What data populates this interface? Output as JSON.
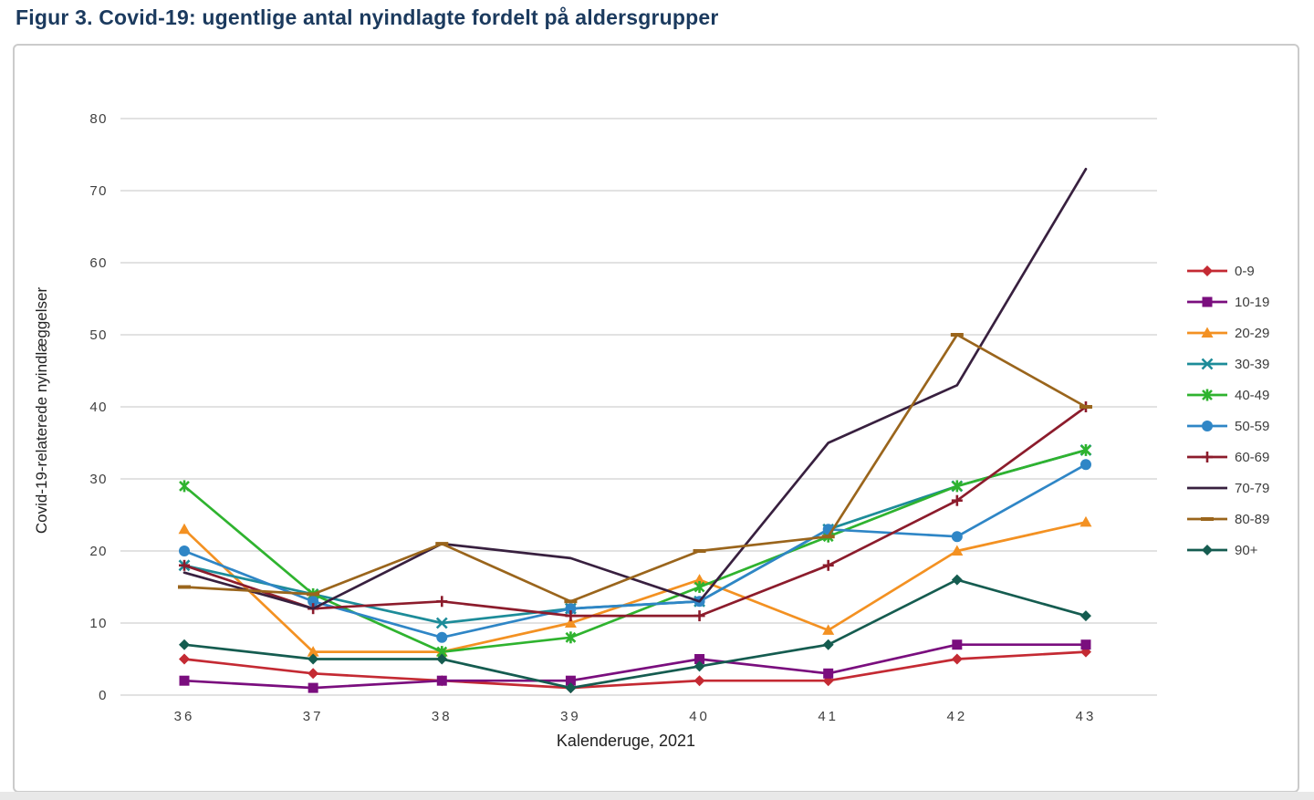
{
  "title": "Figur 3. Covid-19: ugentlige antal nyindlagte fordelt på aldersgrupper",
  "chart_data": {
    "type": "line",
    "title": "Figur 3. Covid-19: ugentlige antal nyindlagte fordelt på aldersgrupper",
    "xlabel": "Kalenderuge, 2021",
    "ylabel": "Covid-19-relaterede nyindlæggelser",
    "x": [
      36,
      37,
      38,
      39,
      40,
      41,
      42,
      43
    ],
    "yticks": [
      0,
      10,
      20,
      30,
      40,
      50,
      60,
      70,
      80
    ],
    "ylim": [
      0,
      80
    ],
    "grid": "horizontal",
    "legend_position": "right",
    "series": [
      {
        "name": "0-9",
        "color": "#c42a33",
        "marker": "diamond",
        "values": [
          5,
          3,
          2,
          1,
          2,
          2,
          5,
          6
        ]
      },
      {
        "name": "10-19",
        "color": "#7a0e7e",
        "marker": "square",
        "values": [
          2,
          1,
          2,
          2,
          5,
          3,
          7,
          7
        ]
      },
      {
        "name": "20-29",
        "color": "#f39122",
        "marker": "triangle",
        "values": [
          23,
          6,
          6,
          10,
          16,
          9,
          20,
          24
        ]
      },
      {
        "name": "30-39",
        "color": "#1d8c99",
        "marker": "x",
        "values": [
          18,
          14,
          10,
          12,
          13,
          23,
          29,
          34
        ]
      },
      {
        "name": "40-49",
        "color": "#2fb32f",
        "marker": "star",
        "values": [
          29,
          14,
          6,
          8,
          15,
          22,
          29,
          34
        ]
      },
      {
        "name": "50-59",
        "color": "#2f86c6",
        "marker": "circle",
        "values": [
          20,
          13,
          8,
          12,
          13,
          23,
          22,
          32
        ]
      },
      {
        "name": "60-69",
        "color": "#8c1c2c",
        "marker": "plus",
        "values": [
          18,
          12,
          13,
          11,
          11,
          18,
          27,
          40
        ]
      },
      {
        "name": "70-79",
        "color": "#38203f",
        "marker": "none",
        "values": [
          17,
          12,
          21,
          19,
          13,
          35,
          43,
          73
        ]
      },
      {
        "name": "80-89",
        "color": "#9a651c",
        "marker": "dash",
        "values": [
          15,
          14,
          21,
          13,
          20,
          22,
          50,
          40
        ]
      },
      {
        "name": "90+",
        "color": "#155c50",
        "marker": "diamond",
        "values": [
          7,
          5,
          5,
          1,
          4,
          7,
          16,
          11
        ]
      }
    ]
  },
  "colors": {
    "title_text": "#1b3a5e",
    "axis_text": "#3f3f3f",
    "gridline": "#d9d9d9",
    "panel_border": "#cbcbcb"
  }
}
